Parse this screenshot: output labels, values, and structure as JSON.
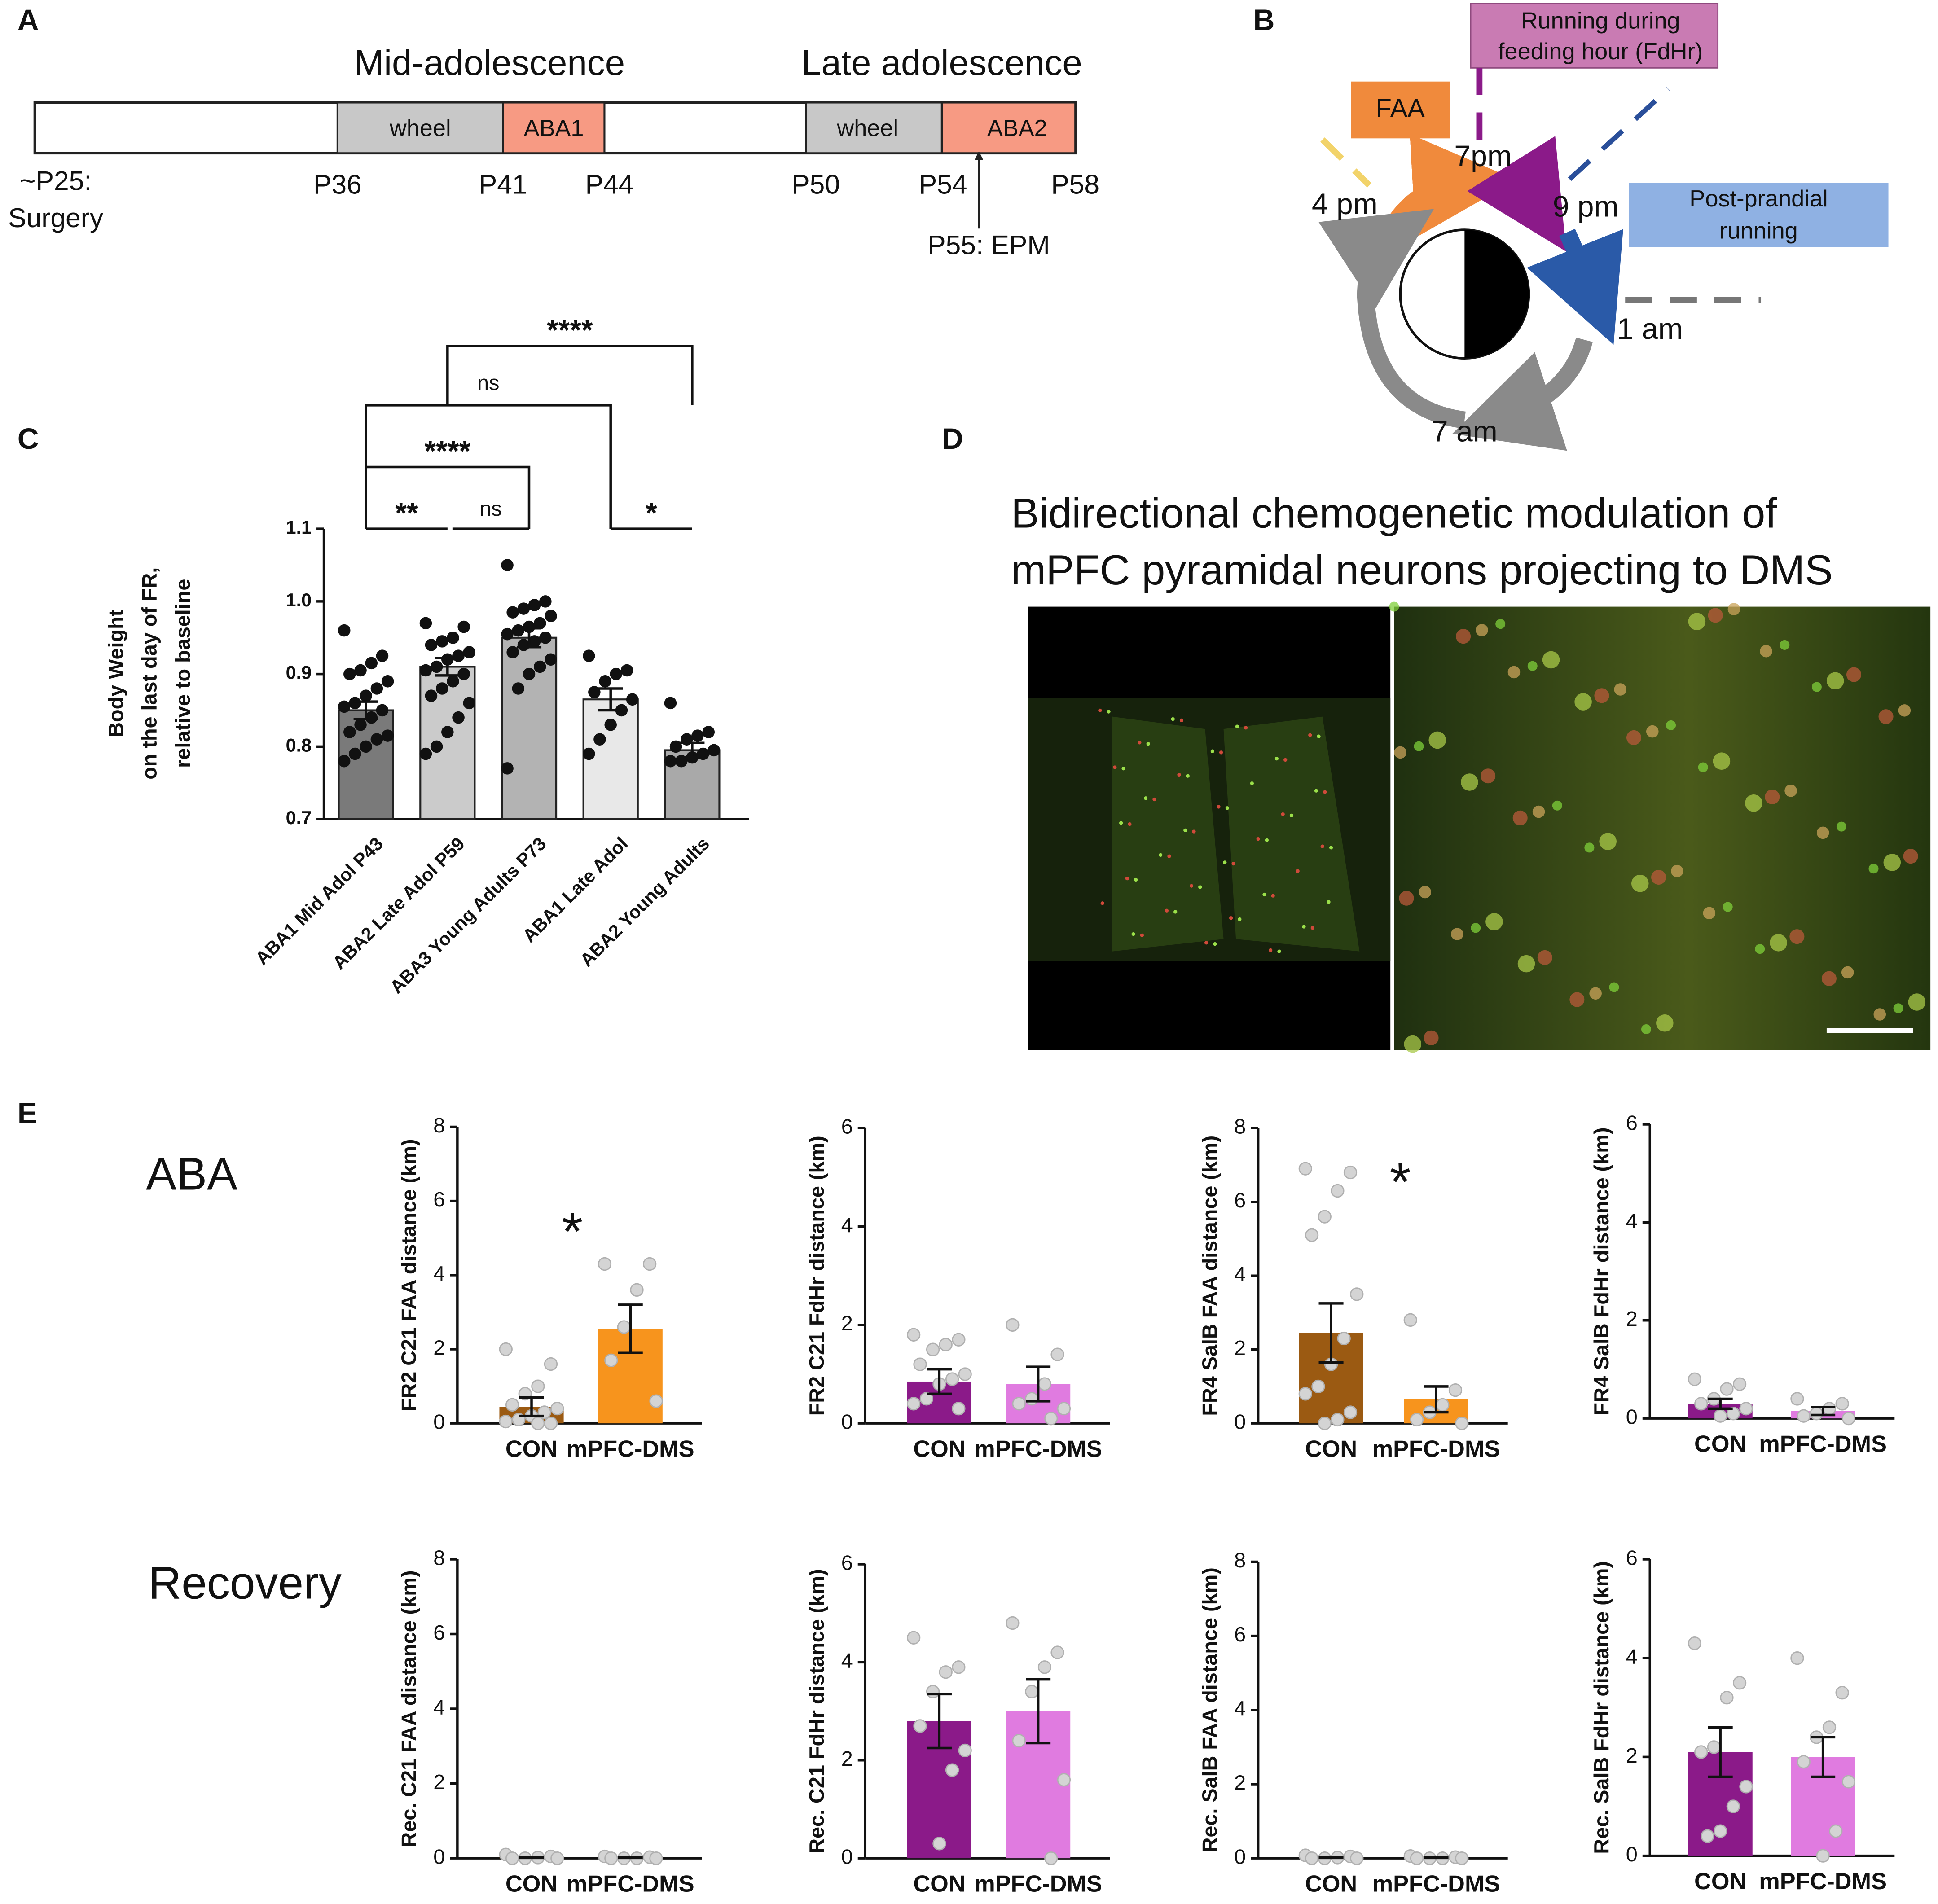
{
  "panel_labels": [
    "A",
    "B",
    "C",
    "D",
    "E"
  ],
  "timeline": {
    "phases": [
      "Mid-adolescence",
      "Late adolescence"
    ],
    "segments": [
      "wheel",
      "ABA1",
      "wheel",
      "ABA2"
    ],
    "days": [
      "P36",
      "P41",
      "P44",
      "P50",
      "P54",
      "P58"
    ],
    "surgery": [
      "~P25:",
      "Surgery"
    ],
    "epm": "P55: EPM"
  },
  "cycle": {
    "faa": "FAA",
    "fdhr": [
      "Running during",
      "feeding hour (FdHr)"
    ],
    "post": [
      "Post-prandial",
      "running"
    ],
    "times": [
      "4 pm",
      "7pm",
      "9 pm",
      "1 am",
      "7 am"
    ]
  },
  "micrograph": {
    "title": [
      "Bidirectional chemogenetic modulation of",
      "mPFC pyramidal neurons projecting to DMS"
    ]
  },
  "rows": [
    "ABA",
    "Recovery"
  ],
  "chart_data": [
    {
      "type": "bar",
      "y_label": [
        "Body Weight",
        "on the last day of  FR,",
        "relative to baseline"
      ],
      "categories": [
        "ABA1 Mid Adol P43",
        "ABA2 Late Adol P59",
        "ABA3 Young Adults P73",
        "ABA1 Late Adol",
        "ABA2 Young Adults"
      ],
      "values": [
        0.85,
        0.91,
        0.95,
        0.865,
        0.795
      ],
      "errors": [
        0.012,
        0.012,
        0.013,
        0.015,
        0.01
      ],
      "colors": [
        "#7a7a7a",
        "#cbcbcb",
        "#b3b3b3",
        "#e8e8e8",
        "#a9a9a9"
      ],
      "points": [
        [
          0.96,
          0.925,
          0.915,
          0.905,
          0.9,
          0.89,
          0.88,
          0.87,
          0.86,
          0.855,
          0.85,
          0.84,
          0.83,
          0.82,
          0.815,
          0.81,
          0.8,
          0.79,
          0.78
        ],
        [
          0.97,
          0.965,
          0.95,
          0.945,
          0.94,
          0.93,
          0.925,
          0.92,
          0.91,
          0.905,
          0.9,
          0.89,
          0.88,
          0.87,
          0.86,
          0.84,
          0.82,
          0.8,
          0.79
        ],
        [
          1.05,
          1.0,
          0.995,
          0.99,
          0.985,
          0.98,
          0.97,
          0.965,
          0.96,
          0.955,
          0.95,
          0.945,
          0.94,
          0.93,
          0.92,
          0.91,
          0.9,
          0.88,
          0.77
        ],
        [
          0.925,
          0.905,
          0.9,
          0.89,
          0.875,
          0.865,
          0.85,
          0.83,
          0.81,
          0.79
        ],
        [
          0.86,
          0.82,
          0.815,
          0.81,
          0.8,
          0.795,
          0.79,
          0.785,
          0.78,
          0.78
        ]
      ],
      "ylim": [
        0.7,
        1.1
      ],
      "yticks": [
        0.7,
        0.8,
        0.9,
        {
          "value": 1,
          "label": "1.0"
        },
        1.1
      ],
      "annotations": [
        "**",
        "ns",
        "****",
        "ns",
        "*",
        "****"
      ]
    },
    {
      "type": "bar",
      "y_label": "FR2 C21 FAA distance (km)",
      "categories": [
        "CON",
        "mPFC-DMS"
      ],
      "values": [
        0.45,
        2.55
      ],
      "errors": [
        0.25,
        0.65
      ],
      "colors": [
        "#9b5a12",
        "#f7941d"
      ],
      "points": [
        [
          2.0,
          1.6,
          1.0,
          0.8,
          0.5,
          0.4,
          0.3,
          0.2,
          0.1,
          0.05,
          0,
          0
        ],
        [
          4.3,
          4.3,
          3.6,
          2.6,
          1.7,
          0.6
        ]
      ],
      "ylim": [
        0,
        8
      ],
      "yticks": [
        0,
        2,
        4,
        6,
        8
      ],
      "annotations": [
        "*"
      ]
    },
    {
      "type": "bar",
      "y_label": "FR2 C21 FdHr distance (km)",
      "categories": [
        "CON",
        "mPFC-DMS"
      ],
      "values": [
        0.85,
        0.8
      ],
      "errors": [
        0.25,
        0.35
      ],
      "colors": [
        "#8b1a89",
        "#e07be0"
      ],
      "points": [
        [
          1.8,
          1.7,
          1.6,
          1.5,
          1.2,
          1.0,
          0.9,
          0.8,
          0.5,
          0.4,
          0.3
        ],
        [
          2.0,
          1.4,
          0.8,
          0.5,
          0.4,
          0.3,
          0.1
        ]
      ],
      "ylim": [
        0,
        6
      ],
      "yticks": [
        0,
        2,
        4,
        6
      ]
    },
    {
      "type": "bar",
      "y_label": "FR4 SalB FAA distance (km)",
      "categories": [
        "CON",
        "mPFC-DMS"
      ],
      "values": [
        2.45,
        0.65
      ],
      "errors": [
        0.8,
        0.35
      ],
      "colors": [
        "#9b5a12",
        "#f7941d"
      ],
      "points": [
        [
          6.9,
          6.8,
          6.3,
          5.6,
          5.1,
          3.5,
          2.3,
          1.6,
          1.0,
          0.8,
          0.3,
          0.1,
          0
        ],
        [
          2.8,
          0.9,
          0.5,
          0.3,
          0.1,
          0
        ]
      ],
      "ylim": [
        0,
        8
      ],
      "yticks": [
        0,
        2,
        4,
        6,
        8
      ],
      "annotations": [
        "*"
      ]
    },
    {
      "type": "bar",
      "y_label": "FR4 SalB FdHr distance (km)",
      "categories": [
        "CON",
        "mPFC-DMS"
      ],
      "values": [
        0.3,
        0.15
      ],
      "errors": [
        0.1,
        0.08
      ],
      "colors": [
        "#8b1a89",
        "#e07be0"
      ],
      "points": [
        [
          0.8,
          0.7,
          0.6,
          0.4,
          0.3,
          0.2,
          0.1,
          0.05
        ],
        [
          0.4,
          0.3,
          0.2,
          0.1,
          0.05,
          0
        ]
      ],
      "ylim": [
        0,
        6
      ],
      "yticks": [
        0,
        2,
        4,
        6
      ]
    },
    {
      "type": "bar",
      "y_label": "Rec. C21 FAA distance (km)",
      "categories": [
        "CON",
        "mPFC-DMS"
      ],
      "values": [
        0.02,
        0.02
      ],
      "errors": [
        0.01,
        0.01
      ],
      "colors": [
        "#9b5a12",
        "#f7941d"
      ],
      "points": [
        [
          0.1,
          0.05,
          0.02,
          0,
          0,
          0
        ],
        [
          0.05,
          0.03,
          0,
          0,
          0,
          0
        ]
      ],
      "ylim": [
        0,
        8
      ],
      "yticks": [
        0,
        2,
        4,
        6,
        8
      ]
    },
    {
      "type": "bar",
      "y_label": "Rec. C21 FdHr distance (km)",
      "categories": [
        "CON",
        "mPFC-DMS"
      ],
      "values": [
        2.8,
        3.0
      ],
      "errors": [
        0.55,
        0.65
      ],
      "colors": [
        "#8b1a89",
        "#e07be0"
      ],
      "points": [
        [
          4.5,
          3.9,
          3.8,
          3.4,
          2.7,
          2.2,
          1.8,
          0.3
        ],
        [
          4.8,
          4.2,
          3.9,
          3.4,
          2.4,
          1.6,
          0
        ]
      ],
      "ylim": [
        0,
        6
      ],
      "yticks": [
        0,
        2,
        4,
        6
      ]
    },
    {
      "type": "bar",
      "y_label": "Rec. SalB FAA distance (km)",
      "categories": [
        "CON",
        "mPFC-DMS"
      ],
      "values": [
        0.02,
        0.02
      ],
      "errors": [
        0.01,
        0.01
      ],
      "colors": [
        "#9b5a12",
        "#f7941d"
      ],
      "points": [
        [
          0.08,
          0.05,
          0.02,
          0,
          0,
          0
        ],
        [
          0.06,
          0.03,
          0,
          0,
          0,
          0
        ]
      ],
      "ylim": [
        0,
        8
      ],
      "yticks": [
        0,
        2,
        4,
        6,
        8
      ]
    },
    {
      "type": "bar",
      "y_label": "Rec. SalB FdHr distance (km)",
      "categories": [
        "CON",
        "mPFC-DMS"
      ],
      "values": [
        2.1,
        2.0
      ],
      "errors": [
        0.5,
        0.4
      ],
      "colors": [
        "#8b1a89",
        "#e07be0"
      ],
      "points": [
        [
          4.3,
          3.5,
          3.2,
          2.2,
          2.1,
          1.4,
          1.0,
          0.5,
          0.4
        ],
        [
          4.0,
          3.3,
          2.6,
          2.4,
          1.9,
          1.5,
          0.5,
          0
        ]
      ],
      "ylim": [
        0,
        6
      ],
      "yticks": [
        0,
        2,
        4,
        6
      ]
    }
  ]
}
